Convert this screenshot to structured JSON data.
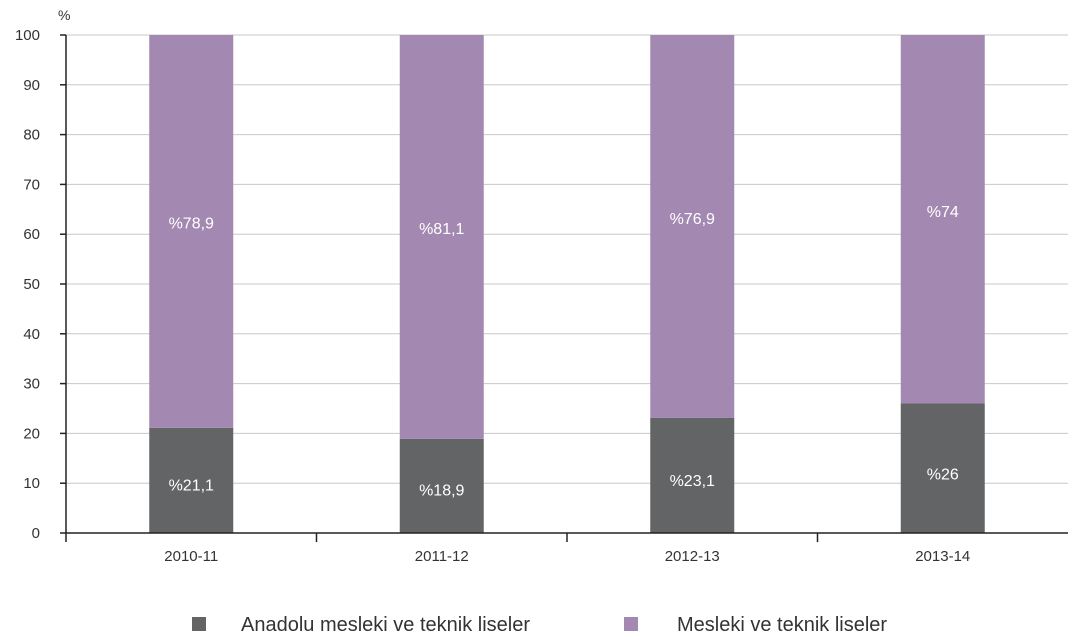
{
  "chart_data": {
    "type": "bar",
    "stacked": true,
    "y_unit_label": "%",
    "ylim": [
      0,
      100
    ],
    "y_ticks": [
      0,
      10,
      20,
      30,
      40,
      50,
      60,
      70,
      80,
      90,
      100
    ],
    "grid": true,
    "legend_position": "bottom",
    "categories": [
      "2010-11",
      "2011-12",
      "2012-13",
      "2013-14"
    ],
    "series": [
      {
        "name": "Anadolu mesleki ve teknik liseler",
        "values": [
          21.1,
          18.9,
          23.1,
          26
        ],
        "labels": [
          "%21,1",
          "%18,9",
          "%23,1",
          "%26"
        ],
        "color": "#636466"
      },
      {
        "name": "Mesleki ve teknik liseler",
        "values": [
          78.9,
          81.1,
          76.9,
          74
        ],
        "labels": [
          "%78,9",
          "%81,1",
          "%76,9",
          "%74"
        ],
        "color": "#a389b1"
      }
    ]
  }
}
